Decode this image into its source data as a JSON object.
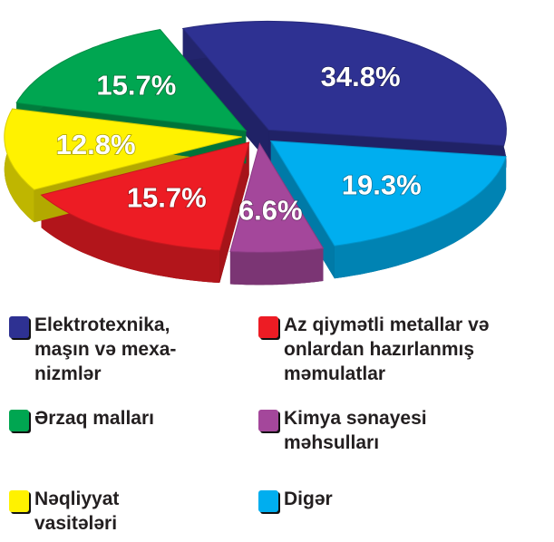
{
  "chart_data": {
    "type": "pie",
    "categories": [
      "Elektrotexnika,\nmaşın və mexa-\nnizmlər",
      "Digər",
      "Kimya sənayesi\nməhsulları",
      "Az qiymətli metallar və\nonlardan hazırlanmış\nməmulatlar",
      "Nəqliyyat\nvasitələri",
      "Ərzaq malları"
    ],
    "values": [
      34.8,
      19.3,
      6.6,
      15.7,
      12.8,
      15.7
    ],
    "value_labels": [
      "34.8%",
      "19.3%",
      "6.6%",
      "15.7%",
      "12.8%",
      "15.7%"
    ],
    "colors": [
      "#2e3192",
      "#00aeef",
      "#a4479b",
      "#ed1c24",
      "#fff200",
      "#00a651"
    ]
  }
}
